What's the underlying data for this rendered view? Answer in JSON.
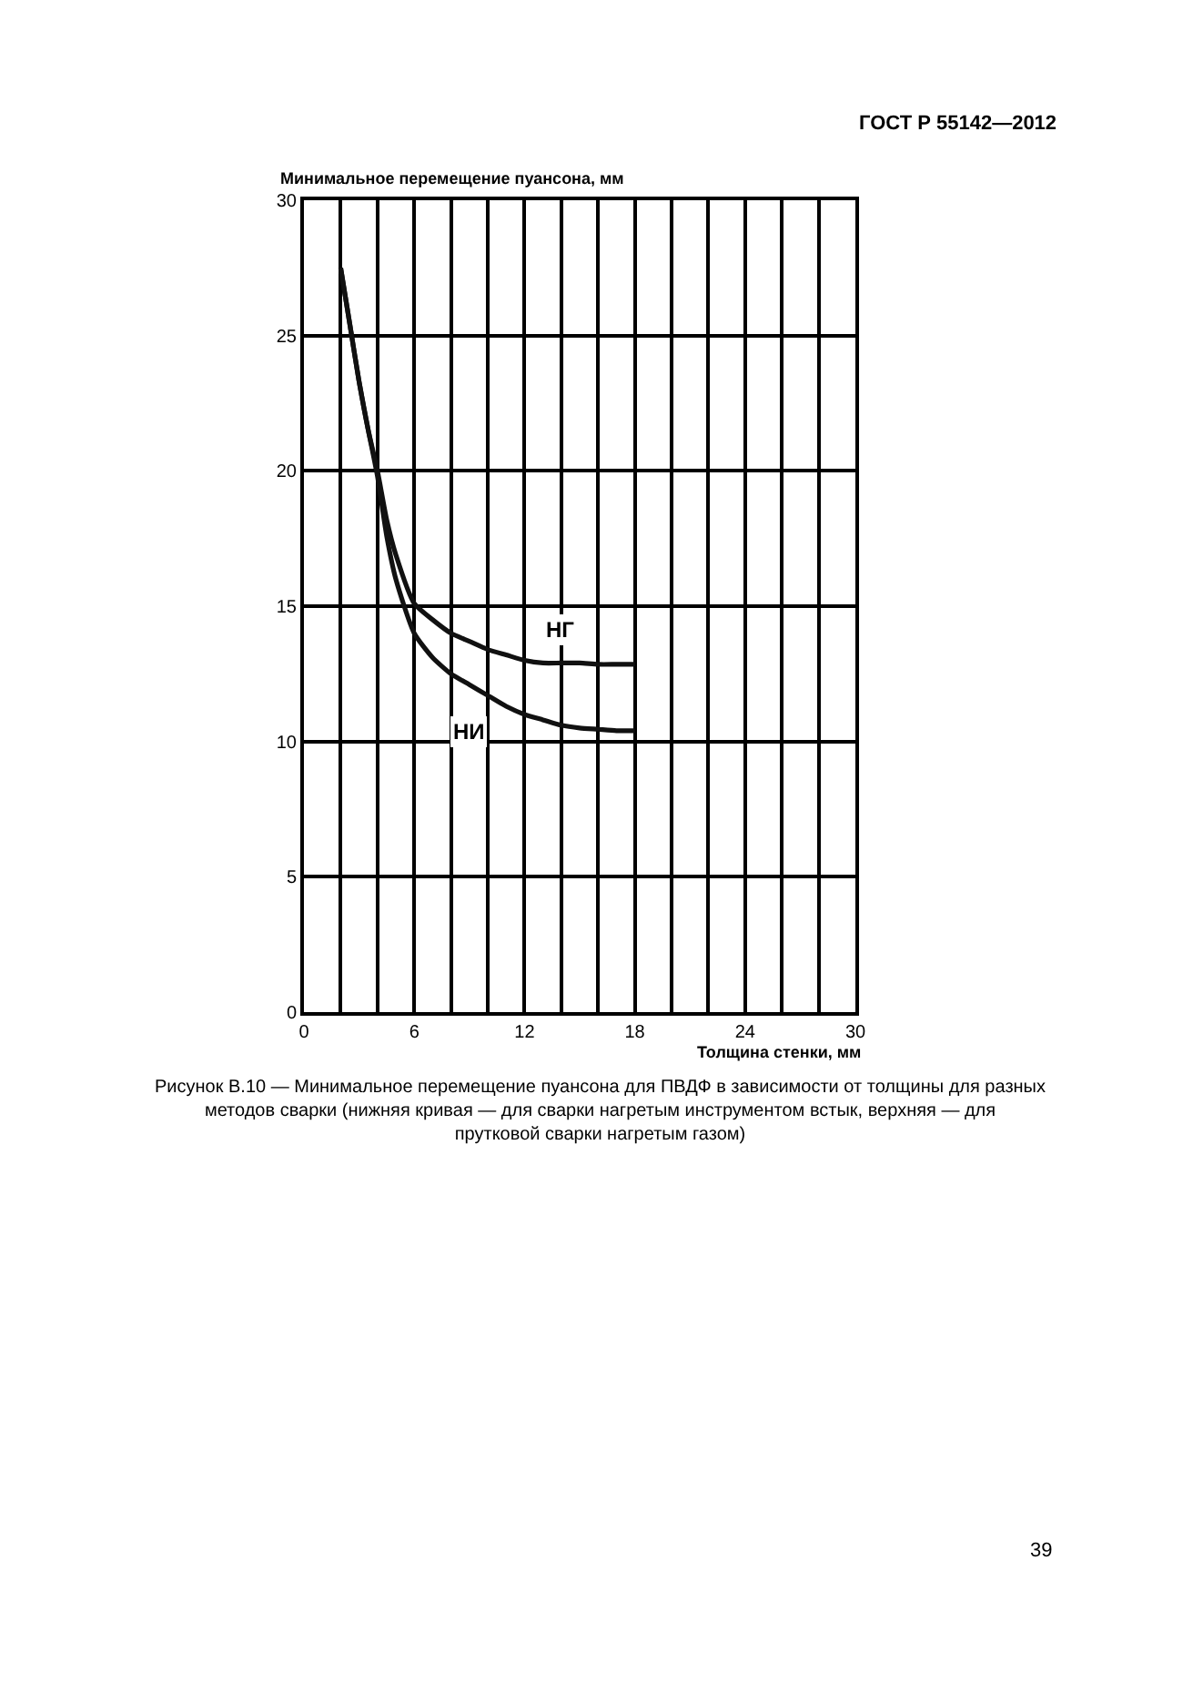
{
  "chart_data": {
    "type": "line",
    "xlabel": "Толщина стенки, мм",
    "ylabel": "Минимальное перемещение пуансона, мм",
    "annotations": [
      "ГОСТ Р 55142—2012",
      "Рисунок В.10 — Минимальное перемещение пуансона для ПВДФ в зависимости от толщины для разных методов сварки (нижняя кривая — для сварки нагретым инструментом встык, верхняя — для прутковой сварки нагретым газом)",
      "39"
    ],
    "x": [
      2,
      2.5,
      3,
      3.5,
      4,
      4.5,
      5,
      6,
      7,
      8,
      9,
      10,
      11,
      12,
      13,
      14,
      15,
      16,
      17,
      18
    ],
    "series": [
      {
        "name": "НГ",
        "color": "#111111",
        "values": [
          27.5,
          25.4,
          23.3,
          21.5,
          20.0,
          18.2,
          16.9,
          15.1,
          14.5,
          14.0,
          13.7,
          13.4,
          13.2,
          13.0,
          12.9,
          12.9,
          12.9,
          12.85,
          12.85,
          12.85
        ]
      },
      {
        "name": "НИ",
        "color": "#111111",
        "values": [
          27.5,
          25.4,
          23.3,
          21.5,
          19.8,
          17.6,
          16.0,
          14.0,
          13.1,
          12.5,
          12.1,
          11.7,
          11.3,
          11.0,
          10.8,
          10.6,
          10.5,
          10.45,
          10.4,
          10.4
        ]
      }
    ],
    "xlim": [
      0,
      30
    ],
    "xticks": [
      0,
      {
        "value": 2,
        "label": null
      },
      {
        "value": 4,
        "label": null
      },
      6,
      {
        "value": 8,
        "label": null
      },
      {
        "value": 10,
        "label": null
      },
      12,
      {
        "value": 14,
        "label": null
      },
      {
        "value": 16,
        "label": null
      },
      18,
      {
        "value": 20,
        "label": null
      },
      {
        "value": 22,
        "label": null
      },
      24,
      {
        "value": 26,
        "label": null
      },
      {
        "value": 28,
        "label": null
      },
      30
    ],
    "ylim": [
      0,
      30
    ],
    "yticks": [
      0,
      5,
      10,
      15,
      20,
      25,
      30
    ],
    "grid": true,
    "legend": false,
    "marker": "none",
    "line_style": "solid"
  }
}
